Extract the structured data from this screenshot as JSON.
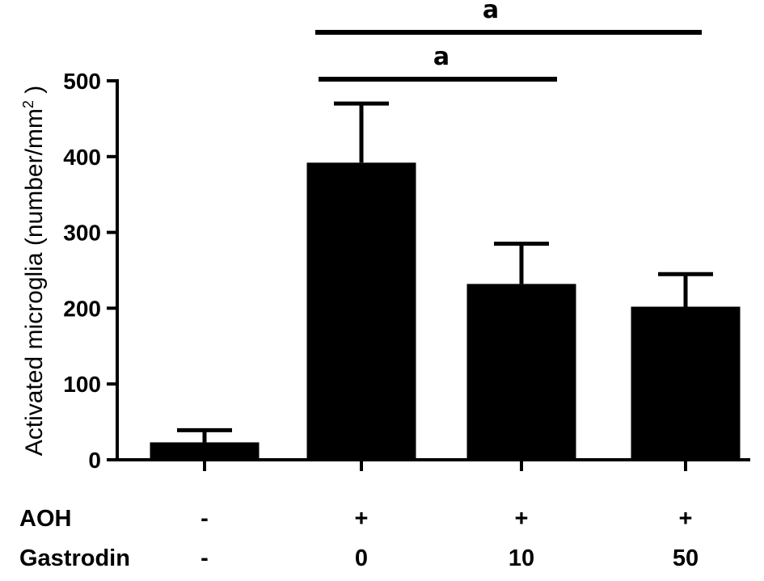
{
  "chart_data": {
    "type": "bar",
    "ylabel_main": "Activated microglia (number/mm",
    "ylabel_sup": "2",
    "ylabel_end": " )",
    "ylim": [
      0,
      500
    ],
    "yticks": [
      0,
      100,
      200,
      300,
      400,
      500
    ],
    "groups": [
      {
        "aoh": "-",
        "gastrodin": "-",
        "value": 23,
        "error": 16
      },
      {
        "aoh": "+",
        "gastrodin": "0",
        "value": 392,
        "error": 78
      },
      {
        "aoh": "+",
        "gastrodin": "10",
        "value": 232,
        "error": 53
      },
      {
        "aoh": "+",
        "gastrodin": "50",
        "value": 202,
        "error": 43
      }
    ],
    "row_labels": {
      "aoh": "AOH",
      "gastrodin": "Gastrodin"
    },
    "significance": [
      {
        "from": 1,
        "to": 3,
        "label": "a"
      },
      {
        "from": 1,
        "to": 2,
        "label": "a"
      }
    ],
    "colors": {
      "bar": "#000000",
      "axis": "#000000"
    }
  }
}
